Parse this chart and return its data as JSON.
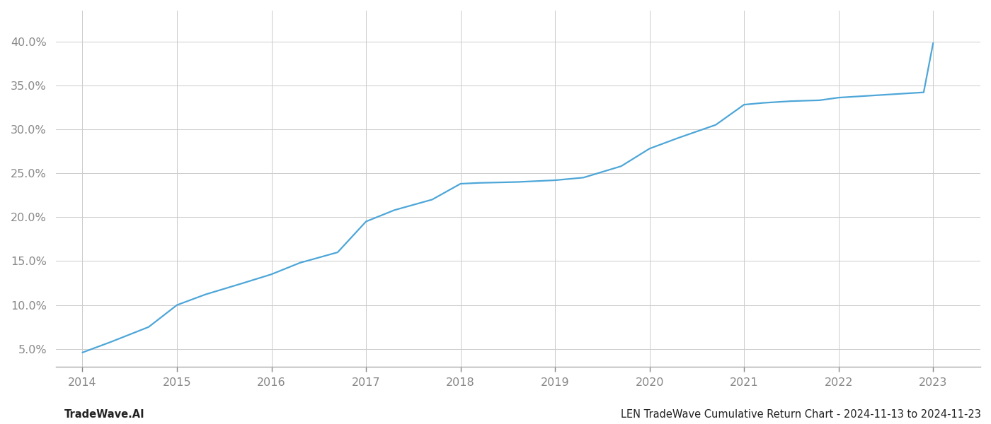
{
  "x_years": [
    2014.0,
    2014.3,
    2014.7,
    2015.0,
    2015.3,
    2015.7,
    2016.0,
    2016.3,
    2016.7,
    2017.0,
    2017.3,
    2017.7,
    2018.0,
    2018.2,
    2018.6,
    2019.0,
    2019.3,
    2019.7,
    2020.0,
    2020.3,
    2020.7,
    2021.0,
    2021.2,
    2021.5,
    2021.8,
    2022.0,
    2022.3,
    2022.6,
    2022.9,
    2023.0
  ],
  "y_values": [
    0.046,
    0.058,
    0.075,
    0.1,
    0.112,
    0.125,
    0.135,
    0.148,
    0.16,
    0.195,
    0.208,
    0.22,
    0.238,
    0.239,
    0.24,
    0.242,
    0.245,
    0.258,
    0.278,
    0.29,
    0.305,
    0.328,
    0.33,
    0.332,
    0.333,
    0.336,
    0.338,
    0.34,
    0.342,
    0.398
  ],
  "line_color": "#4da6d8",
  "line_width": 1.6,
  "background_color": "#ffffff",
  "grid_color": "#cccccc",
  "footer_left": "TradeWave.AI",
  "footer_right": "LEN TradeWave Cumulative Return Chart - 2024-11-13 to 2024-11-23",
  "xlim": [
    2013.72,
    2023.5
  ],
  "ylim": [
    0.03,
    0.435
  ],
  "yticks": [
    0.05,
    0.1,
    0.15,
    0.2,
    0.25,
    0.3,
    0.35,
    0.4
  ],
  "xticks": [
    2014,
    2015,
    2016,
    2017,
    2018,
    2019,
    2020,
    2021,
    2022,
    2023
  ],
  "footer_fontsize": 10.5,
  "tick_fontsize": 11.5,
  "tick_color": "#888888"
}
